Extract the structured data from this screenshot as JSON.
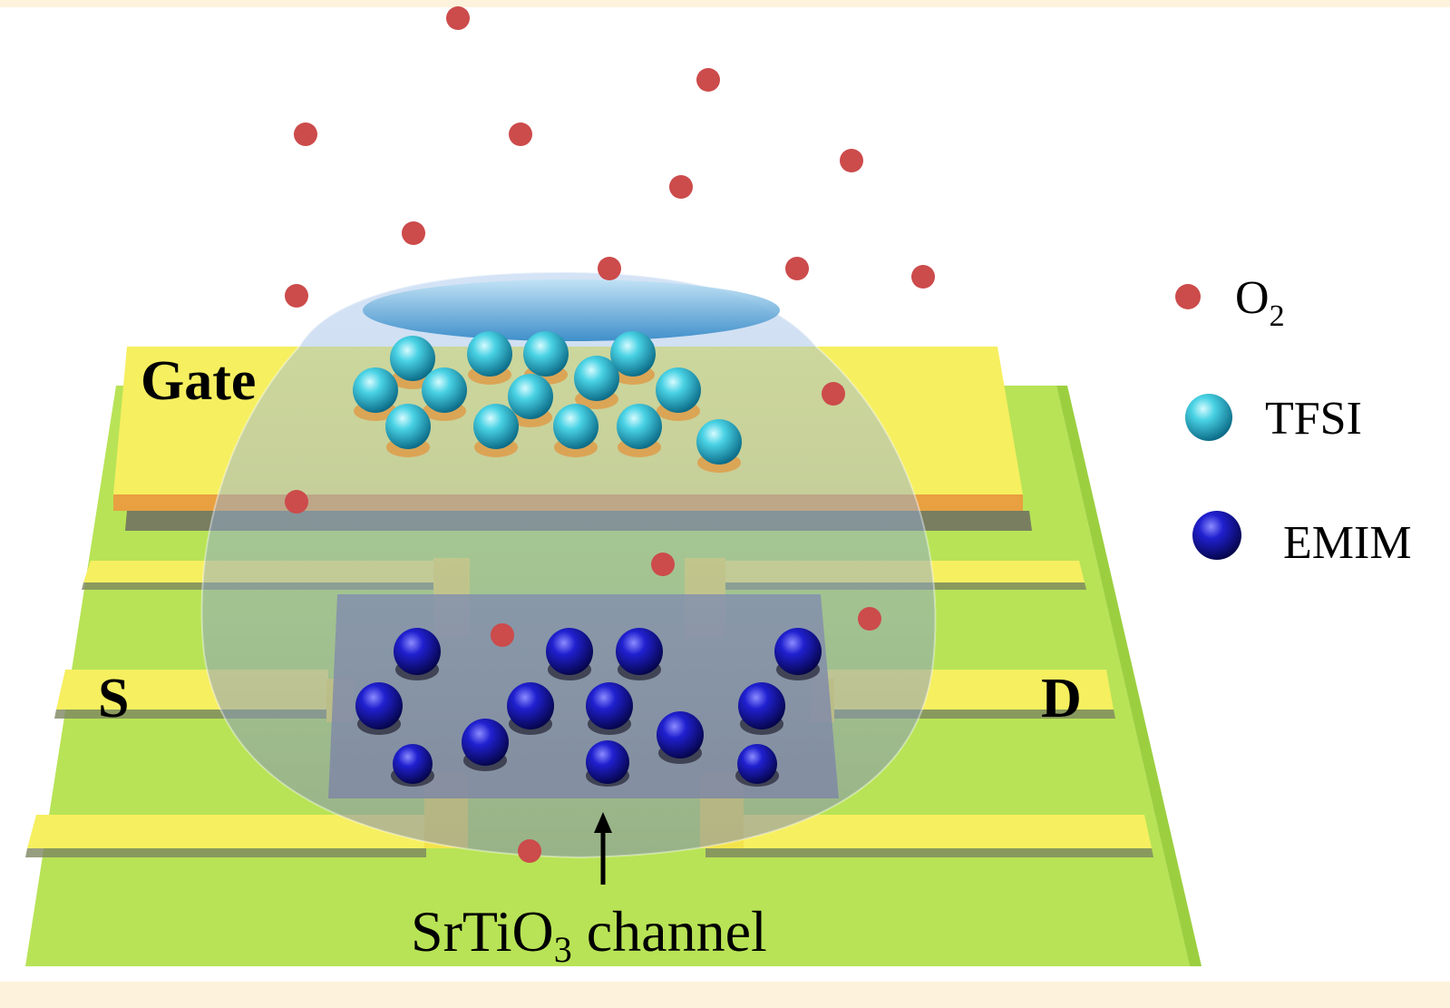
{
  "labels": {
    "gate": "Gate",
    "source": "S",
    "drain": "D",
    "channel_pre": "SrTiO",
    "channel_sub": "3",
    "channel_post": " channel"
  },
  "legend": [
    {
      "key": "o2",
      "text": "O",
      "sub": "2",
      "color": "#cc4b4b",
      "icon": "red-dot-icon"
    },
    {
      "key": "tfsi",
      "text": "TFSI",
      "sub": "",
      "color": "#35c9dc",
      "icon": "cyan-sphere-icon"
    },
    {
      "key": "emim",
      "text": "EMIM",
      "sub": "",
      "color": "#1616b8",
      "icon": "blue-sphere-icon"
    }
  ],
  "colors": {
    "substrate": "#b8e356",
    "electrode": "#f6ef60",
    "electrode_edge": "#e8a040",
    "droplet": "#9fb7da",
    "o2": "#cc4b4b",
    "tfsi": "#35c9dc",
    "emim": "#1616b8",
    "frame": "#fdf3dc"
  }
}
